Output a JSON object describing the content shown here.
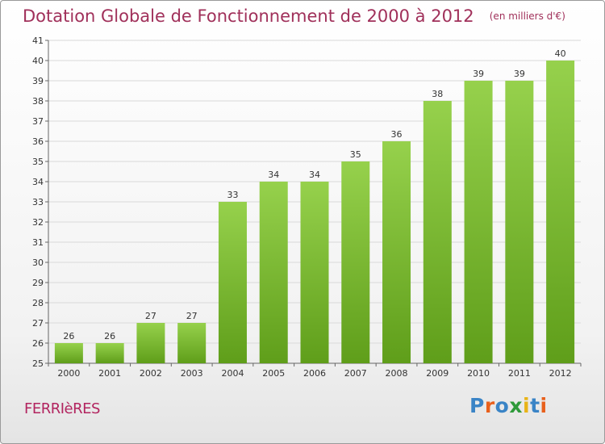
{
  "title": "Dotation Globale de Fonctionnement de 2000 à 2012",
  "subtitle": "(en milliers d'€)",
  "commune": "FERRIèRES",
  "logo": {
    "text": "Proxiti",
    "letter_colors": [
      "#3a84c6",
      "#e8601c",
      "#3a84c6",
      "#2e9a3a",
      "#e8b417",
      "#3a84c6",
      "#e8601c"
    ]
  },
  "colors": {
    "title": "#a0305a",
    "bar_top": "#96d14c",
    "bar_bottom": "#5f9e1a",
    "grid": "#d9d9d9"
  },
  "chart_data": {
    "type": "bar",
    "title": "Dotation Globale de Fonctionnement de 2000 à 2012",
    "subtitle": "(en milliers d'€)",
    "xlabel": "",
    "ylabel": "",
    "categories": [
      "2000",
      "2001",
      "2002",
      "2003",
      "2004",
      "2005",
      "2006",
      "2007",
      "2008",
      "2009",
      "2010",
      "2011",
      "2012"
    ],
    "values": [
      26,
      26,
      27,
      27,
      33,
      34,
      34,
      35,
      36,
      38,
      39,
      39,
      40
    ],
    "ylim": [
      25,
      41
    ],
    "yticks": [
      25,
      26,
      27,
      28,
      29,
      30,
      31,
      32,
      33,
      34,
      35,
      36,
      37,
      38,
      39,
      40,
      41
    ],
    "grid": true,
    "data_labels": true
  }
}
